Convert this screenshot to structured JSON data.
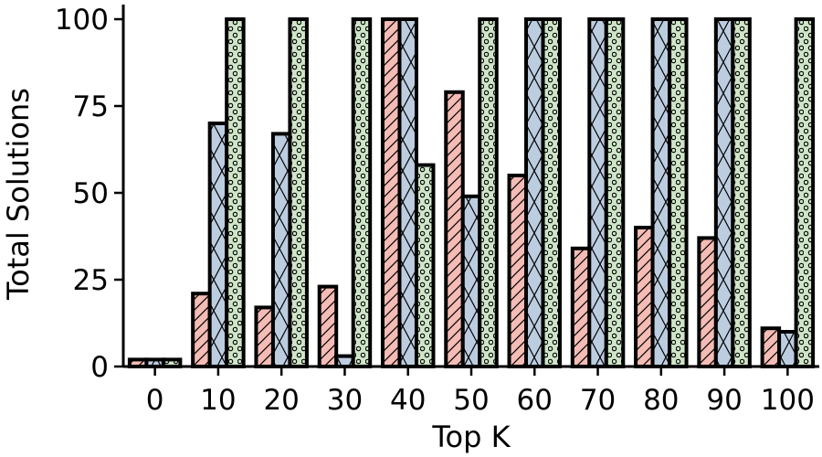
{
  "chart_data": {
    "type": "bar",
    "title": "",
    "xlabel": "Top K",
    "ylabel": "Total Solutions",
    "categories": [
      "0",
      "10",
      "20",
      "30",
      "40",
      "50",
      "60",
      "70",
      "80",
      "90",
      "100"
    ],
    "ylim": [
      0,
      100
    ],
    "yticks": [
      0,
      25,
      50,
      75,
      100
    ],
    "grid": false,
    "legend": "none",
    "series": [
      {
        "values": [
          2,
          21,
          17,
          23,
          100,
          79,
          55,
          34,
          40,
          37,
          11
        ],
        "color": "#f4bcb5",
        "hatch": "diagonal"
      },
      {
        "values": [
          2,
          70,
          67,
          3,
          100,
          49,
          100,
          100,
          100,
          100,
          10
        ],
        "color": "#bccde0",
        "hatch": "cross"
      },
      {
        "values": [
          2,
          100,
          100,
          100,
          58,
          100,
          100,
          100,
          100,
          100,
          100
        ],
        "color": "#cfe5c8",
        "hatch": "circle"
      }
    ]
  }
}
